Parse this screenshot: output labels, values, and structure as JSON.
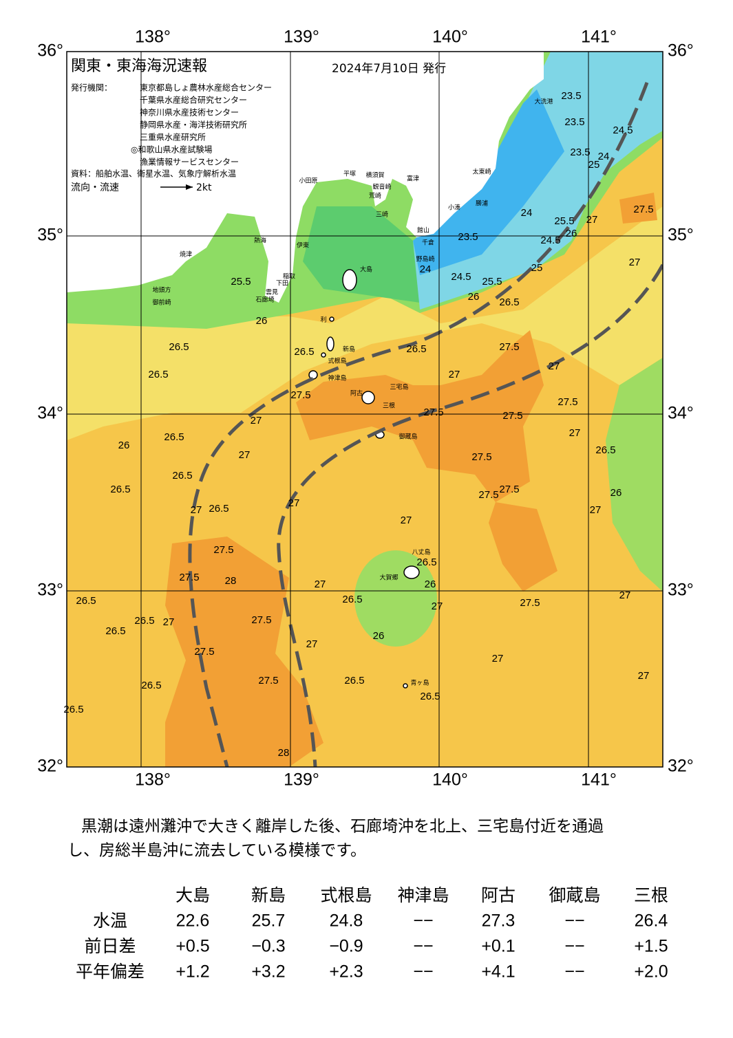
{
  "header": {
    "title": "関東・東海海況速報",
    "date": "2024年7月10日 発行",
    "issuer_label": "発行機関：",
    "issuers": [
      "東京都島しょ農林水産総合センター",
      "千葉県水産総合研究センター",
      "神奈川県水産技術センター",
      "静岡県水産・海洋技術研究所",
      "三重県水産研究所",
      "◎和歌山県水産試験場",
      "漁業情報サービスセンター"
    ],
    "source": "資料：船舶水温、衛星水温、気象庁解析水温",
    "current_legend": "流向・流速",
    "current_scale": "2kt"
  },
  "axes": {
    "lon_labels": [
      "138°",
      "139°",
      "140°",
      "141°"
    ],
    "lat_labels": [
      "36°",
      "35°",
      "34°",
      "33°",
      "32°"
    ]
  },
  "places": [
    "大洗港",
    "太東崎",
    "勝浦",
    "小湊",
    "館山",
    "千倉",
    "野島崎",
    "富津",
    "観音崎",
    "平塚",
    "横須賀",
    "小田原",
    "荒崎",
    "三崎",
    "大島",
    "伊東",
    "熱海",
    "焼津",
    "御前崎",
    "地頭方",
    "石廊埼",
    "下田",
    "雲見",
    "稲取",
    "利",
    "新島",
    "式根島",
    "神津島",
    "三宅島",
    "阿古",
    "三根",
    "御蔵島",
    "八丈島",
    "大賀郷",
    "青ヶ島"
  ],
  "contour_labels": [
    "23.5",
    "23.5",
    "24.5",
    "23.5",
    "24",
    "25",
    "24",
    "25.5",
    "24.5",
    "26",
    "23.5",
    "24",
    "24.5",
    "25.5",
    "25",
    "26",
    "26.5",
    "27.5",
    "27",
    "27",
    "25.5",
    "26",
    "26.5",
    "26.5",
    "26.5",
    "26.5",
    "27.5",
    "27",
    "27",
    "27.5",
    "27",
    "27.5",
    "27.5",
    "27.5",
    "27",
    "26.5",
    "26.5",
    "26",
    "27",
    "26.5",
    "26.5",
    "27.5",
    "27.5",
    "27.5",
    "26",
    "27",
    "27",
    "26.5",
    "27",
    "27",
    "27.5",
    "27.5",
    "28",
    "27",
    "26.5",
    "26",
    "27",
    "26.5",
    "27.5",
    "27",
    "26.5",
    "27.5",
    "26.5",
    "27",
    "26.5",
    "27",
    "26",
    "27",
    "27.5",
    "27.5",
    "26.5",
    "26.5",
    "27",
    "26.5",
    "26.5",
    "28"
  ],
  "description": [
    "黒潮は遠州灘沖で大きく離岸した後、石廊埼沖を北上、三宅島付近を通過",
    "し、房総半島沖に流去している模様です。"
  ],
  "table": {
    "columns": [
      "大島",
      "新島",
      "式根島",
      "神津島",
      "阿古",
      "御蔵島",
      "三根"
    ],
    "rows": [
      {
        "label": "水温",
        "cells": [
          "22.6",
          "25.7",
          "24.8",
          "−−",
          "27.3",
          "−−",
          "26.4"
        ]
      },
      {
        "label": "前日差",
        "cells": [
          "+0.5",
          "−0.3",
          "−0.9",
          "−−",
          "+0.1",
          "−−",
          "+1.5"
        ]
      },
      {
        "label": "平年偏差",
        "cells": [
          "+1.2",
          "+3.2",
          "+2.3",
          "−−",
          "+4.1",
          "−−",
          "+2.0"
        ]
      }
    ]
  }
}
